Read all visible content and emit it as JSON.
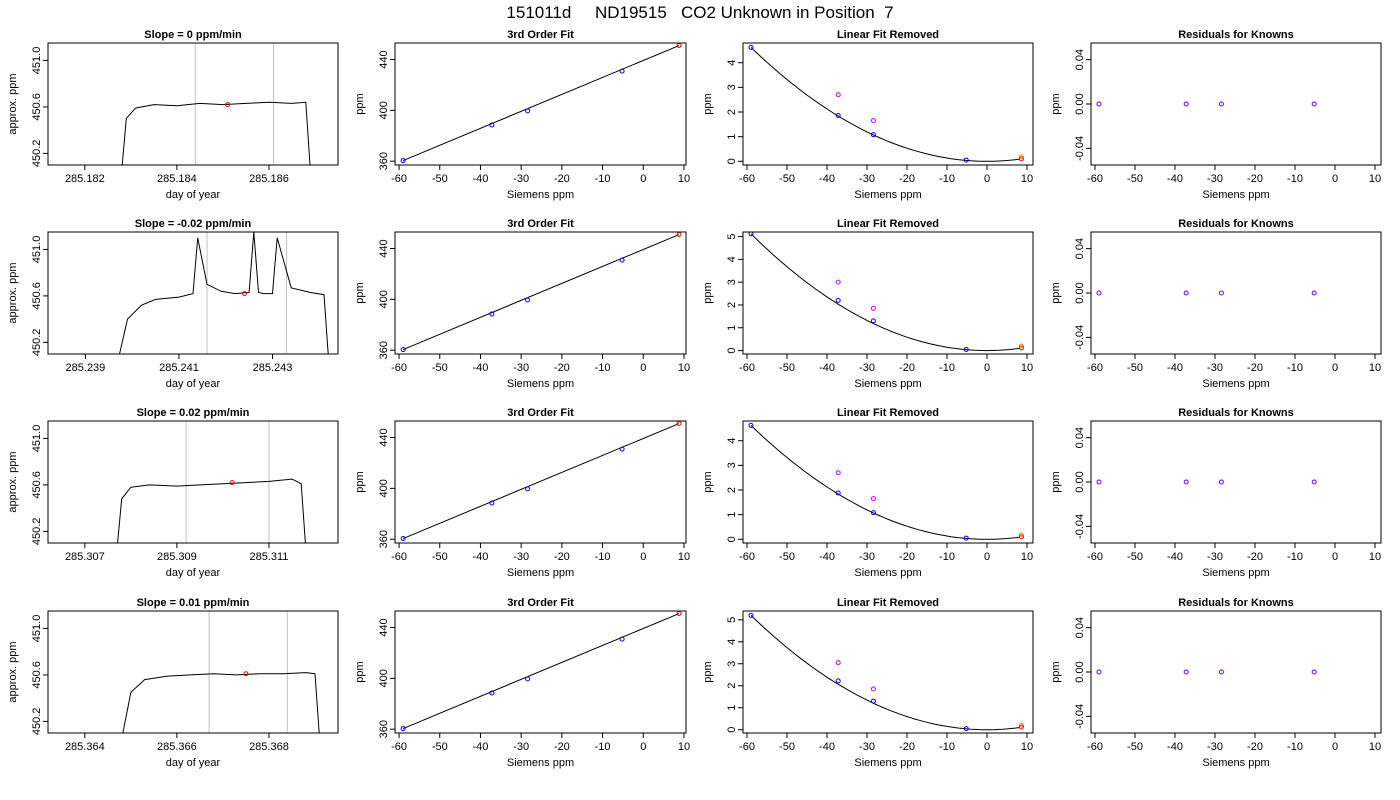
{
  "page": {
    "title": "151011d     ND19515   CO2 Unknown in Position  7"
  },
  "chart_data": [
    {
      "type": "line",
      "row": 1,
      "title": "Slope =  0  ppm/min",
      "xlabel": "day of year",
      "ylabel": "approx. ppm",
      "xticks": [
        "285.182",
        "285.184",
        "285.186"
      ],
      "xtick_values": [
        285.182,
        285.184,
        285.186
      ],
      "yticks": [
        "450.2",
        "450.6",
        "451.0"
      ],
      "ytick_values": [
        450.2,
        450.6,
        451.0
      ],
      "xlim": [
        285.1812,
        285.1875
      ],
      "ylim": [
        450.1,
        451.15
      ],
      "vlines": [
        285.1844,
        285.1861
      ],
      "marker": {
        "x": 285.1851,
        "y": 450.62
      },
      "trace": {
        "x": [
          285.1828,
          285.1829,
          285.1831,
          285.1835,
          285.184,
          285.1845,
          285.185,
          285.1855,
          285.186,
          285.1865,
          285.1868,
          285.1869
        ],
        "y": [
          450.05,
          450.5,
          450.59,
          450.62,
          450.61,
          450.63,
          450.62,
          450.63,
          450.64,
          450.63,
          450.64,
          450.05
        ]
      }
    },
    {
      "type": "line",
      "row": 2,
      "title": "Slope =  -0.02  ppm/min",
      "xlabel": "day of year",
      "ylabel": "approx. ppm",
      "xticks": [
        "285.239",
        "285.241",
        "285.243"
      ],
      "xtick_values": [
        285.239,
        285.241,
        285.243
      ],
      "yticks": [
        "450.2",
        "450.6",
        "451.0"
      ],
      "ytick_values": [
        450.2,
        450.6,
        451.0
      ],
      "xlim": [
        285.2382,
        285.2444
      ],
      "ylim": [
        450.1,
        451.15
      ],
      "vlines": [
        285.2416,
        285.2433
      ],
      "marker": {
        "x": 285.2424,
        "y": 450.62
      },
      "trace": {
        "x": [
          285.2397,
          285.2399,
          285.2402,
          285.2405,
          285.241,
          285.2413,
          285.2414,
          285.2416,
          285.2419,
          285.2422,
          285.2425,
          285.2426,
          285.2427,
          285.2428,
          285.243,
          285.2431,
          285.2434,
          285.2438,
          285.2441,
          285.2442
        ],
        "y": [
          450.05,
          450.4,
          450.52,
          450.57,
          450.59,
          450.62,
          451.1,
          450.7,
          450.64,
          450.62,
          450.63,
          451.15,
          450.63,
          450.62,
          450.62,
          451.1,
          450.67,
          450.63,
          450.61,
          450.05
        ]
      }
    },
    {
      "type": "line",
      "row": 3,
      "title": "Slope =  0.02  ppm/min",
      "xlabel": "day of year",
      "ylabel": "approx. ppm",
      "xticks": [
        "285.307",
        "285.309",
        "285.311"
      ],
      "xtick_values": [
        285.307,
        285.309,
        285.311
      ],
      "yticks": [
        "450.2",
        "450.6",
        "451.0"
      ],
      "ytick_values": [
        450.2,
        450.6,
        451.0
      ],
      "xlim": [
        285.3062,
        285.3125
      ],
      "ylim": [
        450.1,
        451.15
      ],
      "vlines": [
        285.3092,
        285.311
      ],
      "marker": {
        "x": 285.3102,
        "y": 450.62
      },
      "trace": {
        "x": [
          285.3077,
          285.3078,
          285.308,
          285.3084,
          285.309,
          285.3095,
          285.31,
          285.3105,
          285.311,
          285.3115,
          285.3117,
          285.3118
        ],
        "y": [
          450.05,
          450.48,
          450.58,
          450.6,
          450.59,
          450.6,
          450.61,
          450.62,
          450.63,
          450.65,
          450.61,
          450.05
        ]
      }
    },
    {
      "type": "line",
      "row": 4,
      "title": "Slope =  0.01  ppm/min",
      "xlabel": "day of year",
      "ylabel": "approx. ppm",
      "xticks": [
        "285.364",
        "285.366",
        "285.368"
      ],
      "xtick_values": [
        285.364,
        285.366,
        285.368
      ],
      "yticks": [
        "450.2",
        "450.6",
        "451.0"
      ],
      "ytick_values": [
        450.2,
        450.6,
        451.0
      ],
      "xlim": [
        285.3632,
        285.3695
      ],
      "ylim": [
        450.1,
        451.15
      ],
      "vlines": [
        285.3667,
        285.3684
      ],
      "marker": {
        "x": 285.3675,
        "y": 450.61
      },
      "trace": {
        "x": [
          285.3648,
          285.365,
          285.3653,
          285.3658,
          285.3663,
          285.3668,
          285.3673,
          285.3678,
          285.3683,
          285.3688,
          285.369,
          285.3691
        ],
        "y": [
          450.05,
          450.45,
          450.56,
          450.59,
          450.6,
          450.61,
          450.6,
          450.61,
          450.61,
          450.62,
          450.61,
          450.05
        ]
      }
    },
    {
      "type": "line",
      "row": 1,
      "title": "3rd Order Fit",
      "xlabel": "Siemens ppm",
      "ylabel": "ppm",
      "xticks": [
        "-60",
        "-50",
        "-40",
        "-30",
        "-20",
        "-10",
        "0",
        "10"
      ],
      "xtick_values": [
        -60,
        -50,
        -40,
        -30,
        -20,
        -10,
        0,
        10
      ],
      "yticks": [
        "360",
        "400",
        "440"
      ],
      "ytick_values": [
        360,
        400,
        440
      ],
      "xlim": [
        -61,
        10.5
      ],
      "ylim": [
        357,
        453
      ],
      "fit_line": {
        "x": [
          -59,
          8.8
        ],
        "y": [
          360.5,
          451.0
        ]
      },
      "knowns": {
        "x": [
          -59,
          -37.2,
          -28.4,
          -5.2
        ],
        "y": [
          360.5,
          388.5,
          399.6,
          430.9
        ]
      },
      "unknown": {
        "x": 8.8,
        "y": 451.0
      }
    },
    {
      "type": "line",
      "row": 2,
      "title": "3rd Order Fit",
      "xlabel": "Siemens ppm",
      "ylabel": "ppm",
      "xticks": [
        "-60",
        "-50",
        "-40",
        "-30",
        "-20",
        "-10",
        "0",
        "10"
      ],
      "xtick_values": [
        -60,
        -50,
        -40,
        -30,
        -20,
        -10,
        0,
        10
      ],
      "yticks": [
        "360",
        "400",
        "440"
      ],
      "ytick_values": [
        360,
        400,
        440
      ],
      "xlim": [
        -61,
        10.5
      ],
      "ylim": [
        357,
        453
      ],
      "fit_line": {
        "x": [
          -59,
          8.8
        ],
        "y": [
          360.5,
          451.0
        ]
      },
      "knowns": {
        "x": [
          -59,
          -37.2,
          -28.4,
          -5.2
        ],
        "y": [
          360.5,
          388.5,
          399.6,
          430.9
        ]
      },
      "unknown": {
        "x": 8.8,
        "y": 451.0
      }
    },
    {
      "type": "line",
      "row": 3,
      "title": "3rd Order Fit",
      "xlabel": "Siemens ppm",
      "ylabel": "ppm",
      "xticks": [
        "-60",
        "-50",
        "-40",
        "-30",
        "-20",
        "-10",
        "0",
        "10"
      ],
      "xtick_values": [
        -60,
        -50,
        -40,
        -30,
        -20,
        -10,
        0,
        10
      ],
      "yticks": [
        "360",
        "400",
        "440"
      ],
      "ytick_values": [
        360,
        400,
        440
      ],
      "xlim": [
        -61,
        10.5
      ],
      "ylim": [
        357,
        453
      ],
      "fit_line": {
        "x": [
          -59,
          8.8
        ],
        "y": [
          360.5,
          451.0
        ]
      },
      "knowns": {
        "x": [
          -59,
          -37.2,
          -28.4,
          -5.2
        ],
        "y": [
          360.5,
          388.5,
          399.6,
          430.9
        ]
      },
      "unknown": {
        "x": 8.8,
        "y": 451.0
      }
    },
    {
      "type": "line",
      "row": 4,
      "title": "3rd Order Fit",
      "xlabel": "Siemens ppm",
      "ylabel": "ppm",
      "xticks": [
        "-60",
        "-50",
        "-40",
        "-30",
        "-20",
        "-10",
        "0",
        "10"
      ],
      "xtick_values": [
        -60,
        -50,
        -40,
        -30,
        -20,
        -10,
        0,
        10
      ],
      "yticks": [
        "360",
        "400",
        "440"
      ],
      "ytick_values": [
        360,
        400,
        440
      ],
      "xlim": [
        -61,
        10.5
      ],
      "ylim": [
        357,
        453
      ],
      "fit_line": {
        "x": [
          -59,
          8.8
        ],
        "y": [
          360.5,
          451.0
        ]
      },
      "knowns": {
        "x": [
          -59,
          -37.2,
          -28.4,
          -5.2
        ],
        "y": [
          360.5,
          388.5,
          399.6,
          430.9
        ]
      },
      "unknown": {
        "x": 8.8,
        "y": 451.0
      }
    },
    {
      "type": "scatter",
      "row": 1,
      "title": "Linear Fit Removed",
      "xlabel": "Siemens ppm",
      "ylabel": "ppm",
      "xticks": [
        "-60",
        "-50",
        "-40",
        "-30",
        "-20",
        "-10",
        "0",
        "10"
      ],
      "xtick_values": [
        -60,
        -50,
        -40,
        -30,
        -20,
        -10,
        0,
        10
      ],
      "yticks": [
        "0",
        "1",
        "2",
        "3",
        "4"
      ],
      "ytick_values": [
        0,
        1,
        2,
        3,
        4
      ],
      "xlim": [
        -61,
        11.5
      ],
      "ylim": [
        -0.15,
        4.8
      ],
      "curve_peak": 4.62,
      "knowns": {
        "x": [
          -59,
          -37.2,
          -28.4,
          -5.2
        ],
        "y": [
          4.62,
          1.86,
          1.08,
          0.05
        ]
      },
      "linear_removed": {
        "x": [
          -37.2,
          -28.4,
          8.6
        ],
        "y": [
          2.7,
          1.65,
          0.18
        ]
      },
      "unknown": {
        "x": 8.6,
        "y": 0.1
      }
    },
    {
      "type": "scatter",
      "row": 2,
      "title": "Linear Fit Removed",
      "xlabel": "Siemens ppm",
      "ylabel": "ppm",
      "xticks": [
        "-60",
        "-50",
        "-40",
        "-30",
        "-20",
        "-10",
        "0",
        "10"
      ],
      "xtick_values": [
        -60,
        -50,
        -40,
        -30,
        -20,
        -10,
        0,
        10
      ],
      "yticks": [
        "0",
        "1",
        "2",
        "3",
        "4",
        "5"
      ],
      "ytick_values": [
        0,
        1,
        2,
        3,
        4,
        5
      ],
      "xlim": [
        -61,
        11.5
      ],
      "ylim": [
        -0.15,
        5.2
      ],
      "curve_peak": 5.12,
      "knowns": {
        "x": [
          -59,
          -37.2,
          -28.4,
          -5.2
        ],
        "y": [
          5.12,
          2.2,
          1.3,
          0.05
        ]
      },
      "linear_removed": {
        "x": [
          -37.2,
          -28.4,
          8.6
        ],
        "y": [
          3.0,
          1.85,
          0.2
        ]
      },
      "unknown": {
        "x": 8.6,
        "y": 0.12
      }
    },
    {
      "type": "scatter",
      "row": 3,
      "title": "Linear Fit Removed",
      "xlabel": "Siemens ppm",
      "ylabel": "ppm",
      "xticks": [
        "-60",
        "-50",
        "-40",
        "-30",
        "-20",
        "-10",
        "0",
        "10"
      ],
      "xtick_values": [
        -60,
        -50,
        -40,
        -30,
        -20,
        -10,
        0,
        10
      ],
      "yticks": [
        "0",
        "1",
        "2",
        "3",
        "4"
      ],
      "ytick_values": [
        0,
        1,
        2,
        3,
        4
      ],
      "xlim": [
        -61,
        11.5
      ],
      "ylim": [
        -0.15,
        4.8
      ],
      "curve_peak": 4.62,
      "knowns": {
        "x": [
          -59,
          -37.2,
          -28.4,
          -5.2
        ],
        "y": [
          4.62,
          1.88,
          1.08,
          0.05
        ]
      },
      "linear_removed": {
        "x": [
          -37.2,
          -28.4,
          8.6
        ],
        "y": [
          2.7,
          1.65,
          0.18
        ]
      },
      "unknown": {
        "x": 8.6,
        "y": 0.1
      }
    },
    {
      "type": "scatter",
      "row": 4,
      "title": "Linear Fit Removed",
      "xlabel": "Siemens ppm",
      "ylabel": "ppm",
      "xticks": [
        "-60",
        "-50",
        "-40",
        "-30",
        "-20",
        "-10",
        "0",
        "10"
      ],
      "xtick_values": [
        -60,
        -50,
        -40,
        -30,
        -20,
        -10,
        0,
        10
      ],
      "yticks": [
        "0",
        "1",
        "2",
        "3",
        "4",
        "5"
      ],
      "ytick_values": [
        0,
        1,
        2,
        3,
        4,
        5
      ],
      "xlim": [
        -61,
        11.5
      ],
      "ylim": [
        -0.15,
        5.4
      ],
      "curve_peak": 5.2,
      "knowns": {
        "x": [
          -59,
          -37.2,
          -28.4,
          -5.2
        ],
        "y": [
          5.2,
          2.22,
          1.3,
          0.05
        ]
      },
      "linear_removed": {
        "x": [
          -37.2,
          -28.4,
          8.6
        ],
        "y": [
          3.05,
          1.85,
          0.2
        ]
      },
      "unknown": {
        "x": 8.6,
        "y": 0.12
      }
    },
    {
      "type": "scatter",
      "row": 1,
      "title": "Residuals for Knowns",
      "xlabel": "Siemens ppm",
      "ylabel": "ppm",
      "xticks": [
        "-60",
        "-50",
        "-40",
        "-30",
        "-20",
        "-10",
        "0",
        "10"
      ],
      "xtick_values": [
        -60,
        -50,
        -40,
        -30,
        -20,
        -10,
        0,
        10
      ],
      "yticks": [
        "-0.04",
        "0.00",
        "0.04"
      ],
      "ytick_values": [
        -0.04,
        0.0,
        0.04
      ],
      "xlim": [
        -61,
        11.5
      ],
      "ylim": [
        -0.055,
        0.055
      ],
      "knowns": {
        "x": [
          -59,
          -37.2,
          -28.4,
          -5.2
        ],
        "y": [
          0,
          0,
          0,
          0
        ]
      }
    },
    {
      "type": "scatter",
      "row": 2,
      "title": "Residuals for Knowns",
      "xlabel": "Siemens ppm",
      "ylabel": "ppm",
      "xticks": [
        "-60",
        "-50",
        "-40",
        "-30",
        "-20",
        "-10",
        "0",
        "10"
      ],
      "xtick_values": [
        -60,
        -50,
        -40,
        -30,
        -20,
        -10,
        0,
        10
      ],
      "yticks": [
        "-0.04",
        "0.00",
        "0.04"
      ],
      "ytick_values": [
        -0.04,
        0.0,
        0.04
      ],
      "xlim": [
        -61,
        11.5
      ],
      "ylim": [
        -0.055,
        0.055
      ],
      "knowns": {
        "x": [
          -59,
          -37.2,
          -28.4,
          -5.2
        ],
        "y": [
          0,
          0,
          0,
          0
        ]
      }
    },
    {
      "type": "scatter",
      "row": 3,
      "title": "Residuals for Knowns",
      "xlabel": "Siemens ppm",
      "ylabel": "ppm",
      "xticks": [
        "-60",
        "-50",
        "-40",
        "-30",
        "-20",
        "-10",
        "0",
        "10"
      ],
      "xtick_values": [
        -60,
        -50,
        -40,
        -30,
        -20,
        -10,
        0,
        10
      ],
      "yticks": [
        "-0.04",
        "0.00",
        "0.04"
      ],
      "ytick_values": [
        -0.04,
        0.0,
        0.04
      ],
      "xlim": [
        -61,
        11.5
      ],
      "ylim": [
        -0.055,
        0.055
      ],
      "knowns": {
        "x": [
          -59,
          -37.2,
          -28.4,
          -5.2
        ],
        "y": [
          0,
          0,
          0,
          0
        ]
      }
    },
    {
      "type": "scatter",
      "row": 4,
      "title": "Residuals for Knowns",
      "xlabel": "Siemens ppm",
      "ylabel": "ppm",
      "xticks": [
        "-60",
        "-50",
        "-40",
        "-30",
        "-20",
        "-10",
        "0",
        "10"
      ],
      "xtick_values": [
        -60,
        -50,
        -40,
        -30,
        -20,
        -10,
        0,
        10
      ],
      "yticks": [
        "-0.04",
        "0.00",
        "0.04"
      ],
      "ytick_values": [
        -0.04,
        0.0,
        0.04
      ],
      "xlim": [
        -61,
        11.5
      ],
      "ylim": [
        -0.055,
        0.055
      ],
      "knowns": {
        "x": [
          -59,
          -37.2,
          -28.4,
          -5.2
        ],
        "y": [
          0,
          0,
          0,
          0
        ]
      }
    }
  ],
  "colors": {
    "axis": "#000000",
    "trace": "#000000",
    "vline": "#c0c0c0",
    "known_point": "#0000ff",
    "unknown_point": "#ff0000",
    "linear_removed_point": "#cc00ff",
    "unknown_residual_point": "#ff8800",
    "residual_point": "#6600ff"
  }
}
